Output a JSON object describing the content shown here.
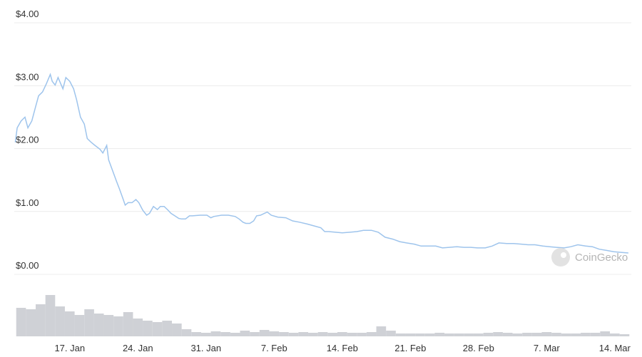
{
  "chart_data": [
    {
      "type": "line",
      "color": "#9ec4ec",
      "x": [
        11.4,
        11.6,
        12.0,
        12.4,
        12.7,
        13.1,
        13.5,
        13.8,
        14.2,
        14.6,
        15.0,
        15.2,
        15.5,
        15.8,
        16.3,
        16.6,
        17.0,
        17.4,
        17.7,
        18.1,
        18.5,
        18.8,
        19.2,
        19.6,
        20.1,
        20.4,
        20.8,
        21.0,
        21.4,
        21.8,
        22.1,
        22.5,
        22.7,
        23.0,
        23.4,
        23.8,
        24.1,
        24.5,
        24.9,
        25.2,
        25.6,
        26.0,
        26.3,
        26.7,
        27.1,
        27.4,
        27.8,
        28.2,
        28.5,
        28.9,
        29.3,
        29.6,
        30.4,
        31.1,
        31.5,
        31.8,
        32.6,
        33.3,
        34.0,
        34.4,
        34.8,
        35.1,
        35.5,
        35.9,
        36.2,
        36.6,
        37.0,
        37.3,
        37.7,
        38.4,
        39.2,
        39.9,
        40.6,
        41.4,
        42.1,
        42.8,
        43.2,
        43.6,
        44.3,
        45.0,
        45.8,
        46.5,
        47.2,
        48.0,
        48.7,
        49.4,
        50.2,
        50.9,
        51.6,
        52.4,
        53.1,
        53.8,
        54.6,
        55.3,
        56.0,
        56.8,
        57.5,
        58.2,
        58.9,
        59.7,
        60.4,
        61.1,
        61.9,
        62.6,
        63.4,
        64.1,
        64.8,
        65.6,
        66.3,
        67.0,
        67.8,
        68.5,
        69.2,
        70.0,
        70.7,
        71.4,
        72.2,
        72.9,
        73.6,
        74.4
      ],
      "values": [
        2.1,
        2.33,
        2.44,
        2.5,
        2.33,
        2.44,
        2.67,
        2.84,
        2.9,
        3.03,
        3.18,
        3.07,
        3.01,
        3.13,
        2.95,
        3.13,
        3.07,
        2.95,
        2.78,
        2.5,
        2.39,
        2.16,
        2.1,
        2.05,
        1.99,
        1.93,
        2.05,
        1.82,
        1.65,
        1.48,
        1.36,
        1.19,
        1.1,
        1.14,
        1.14,
        1.19,
        1.14,
        1.02,
        0.94,
        0.97,
        1.08,
        1.03,
        1.08,
        1.08,
        1.02,
        0.97,
        0.93,
        0.89,
        0.88,
        0.88,
        0.93,
        0.93,
        0.94,
        0.94,
        0.9,
        0.92,
        0.94,
        0.94,
        0.92,
        0.88,
        0.83,
        0.81,
        0.81,
        0.85,
        0.93,
        0.94,
        0.97,
        0.99,
        0.94,
        0.91,
        0.9,
        0.85,
        0.83,
        0.8,
        0.77,
        0.74,
        0.68,
        0.68,
        0.67,
        0.66,
        0.67,
        0.68,
        0.7,
        0.7,
        0.67,
        0.59,
        0.56,
        0.52,
        0.5,
        0.48,
        0.45,
        0.45,
        0.45,
        0.42,
        0.43,
        0.44,
        0.43,
        0.43,
        0.42,
        0.42,
        0.45,
        0.5,
        0.49,
        0.49,
        0.48,
        0.47,
        0.47,
        0.45,
        0.44,
        0.43,
        0.42,
        0.44,
        0.47,
        0.45,
        0.44,
        0.4,
        0.38,
        0.36,
        0.35,
        0.34
      ],
      "xlim": [
        11.3,
        74.7
      ],
      "xticks": [
        {
          "value": 17,
          "label": "17. Jan"
        },
        {
          "value": 24,
          "label": "24. Jan"
        },
        {
          "value": 31,
          "label": "31. Jan"
        },
        {
          "value": 38,
          "label": "7. Feb"
        },
        {
          "value": 45,
          "label": "14. Feb"
        },
        {
          "value": 52,
          "label": "21. Feb"
        },
        {
          "value": 59,
          "label": "28. Feb"
        },
        {
          "value": 66,
          "label": "7. Mar"
        },
        {
          "value": 73,
          "label": "14. Mar"
        }
      ],
      "ylim": [
        0,
        4
      ],
      "yticks": [
        {
          "value": 0,
          "label": "$0.00"
        },
        {
          "value": 1,
          "label": "$1.00"
        },
        {
          "value": 2,
          "label": "$2.00"
        },
        {
          "value": 3,
          "label": "$3.00"
        },
        {
          "value": 4,
          "label": "$4.00"
        }
      ],
      "grid": true
    },
    {
      "type": "bar",
      "color": "#cfd1d6",
      "x": [
        12,
        13,
        14,
        15,
        16,
        17,
        18,
        19,
        20,
        21,
        22,
        23,
        24,
        25,
        26,
        27,
        28,
        29,
        30,
        31,
        32,
        33,
        34,
        35,
        36,
        37,
        38,
        39,
        40,
        41,
        42,
        43,
        44,
        45,
        46,
        47,
        48,
        49,
        50,
        51,
        52,
        53,
        54,
        55,
        56,
        57,
        58,
        59,
        60,
        61,
        62,
        63,
        64,
        65,
        66,
        67,
        68,
        69,
        70,
        71,
        72,
        73,
        74
      ],
      "values": [
        40,
        38,
        45,
        58,
        42,
        35,
        30,
        38,
        32,
        30,
        28,
        34,
        25,
        22,
        20,
        22,
        18,
        10,
        6,
        5,
        7,
        6,
        5,
        8,
        6,
        9,
        7,
        6,
        5,
        6,
        5,
        6,
        5,
        6,
        5,
        5,
        6,
        14,
        8,
        4,
        4,
        4,
        4,
        5,
        4,
        4,
        4,
        4,
        5,
        6,
        5,
        4,
        5,
        5,
        6,
        5,
        4,
        4,
        5,
        5,
        7,
        4,
        3
      ],
      "xlim": [
        11.3,
        74.7
      ],
      "ylim": [
        0,
        70
      ]
    }
  ],
  "watermark": "CoinGecko"
}
